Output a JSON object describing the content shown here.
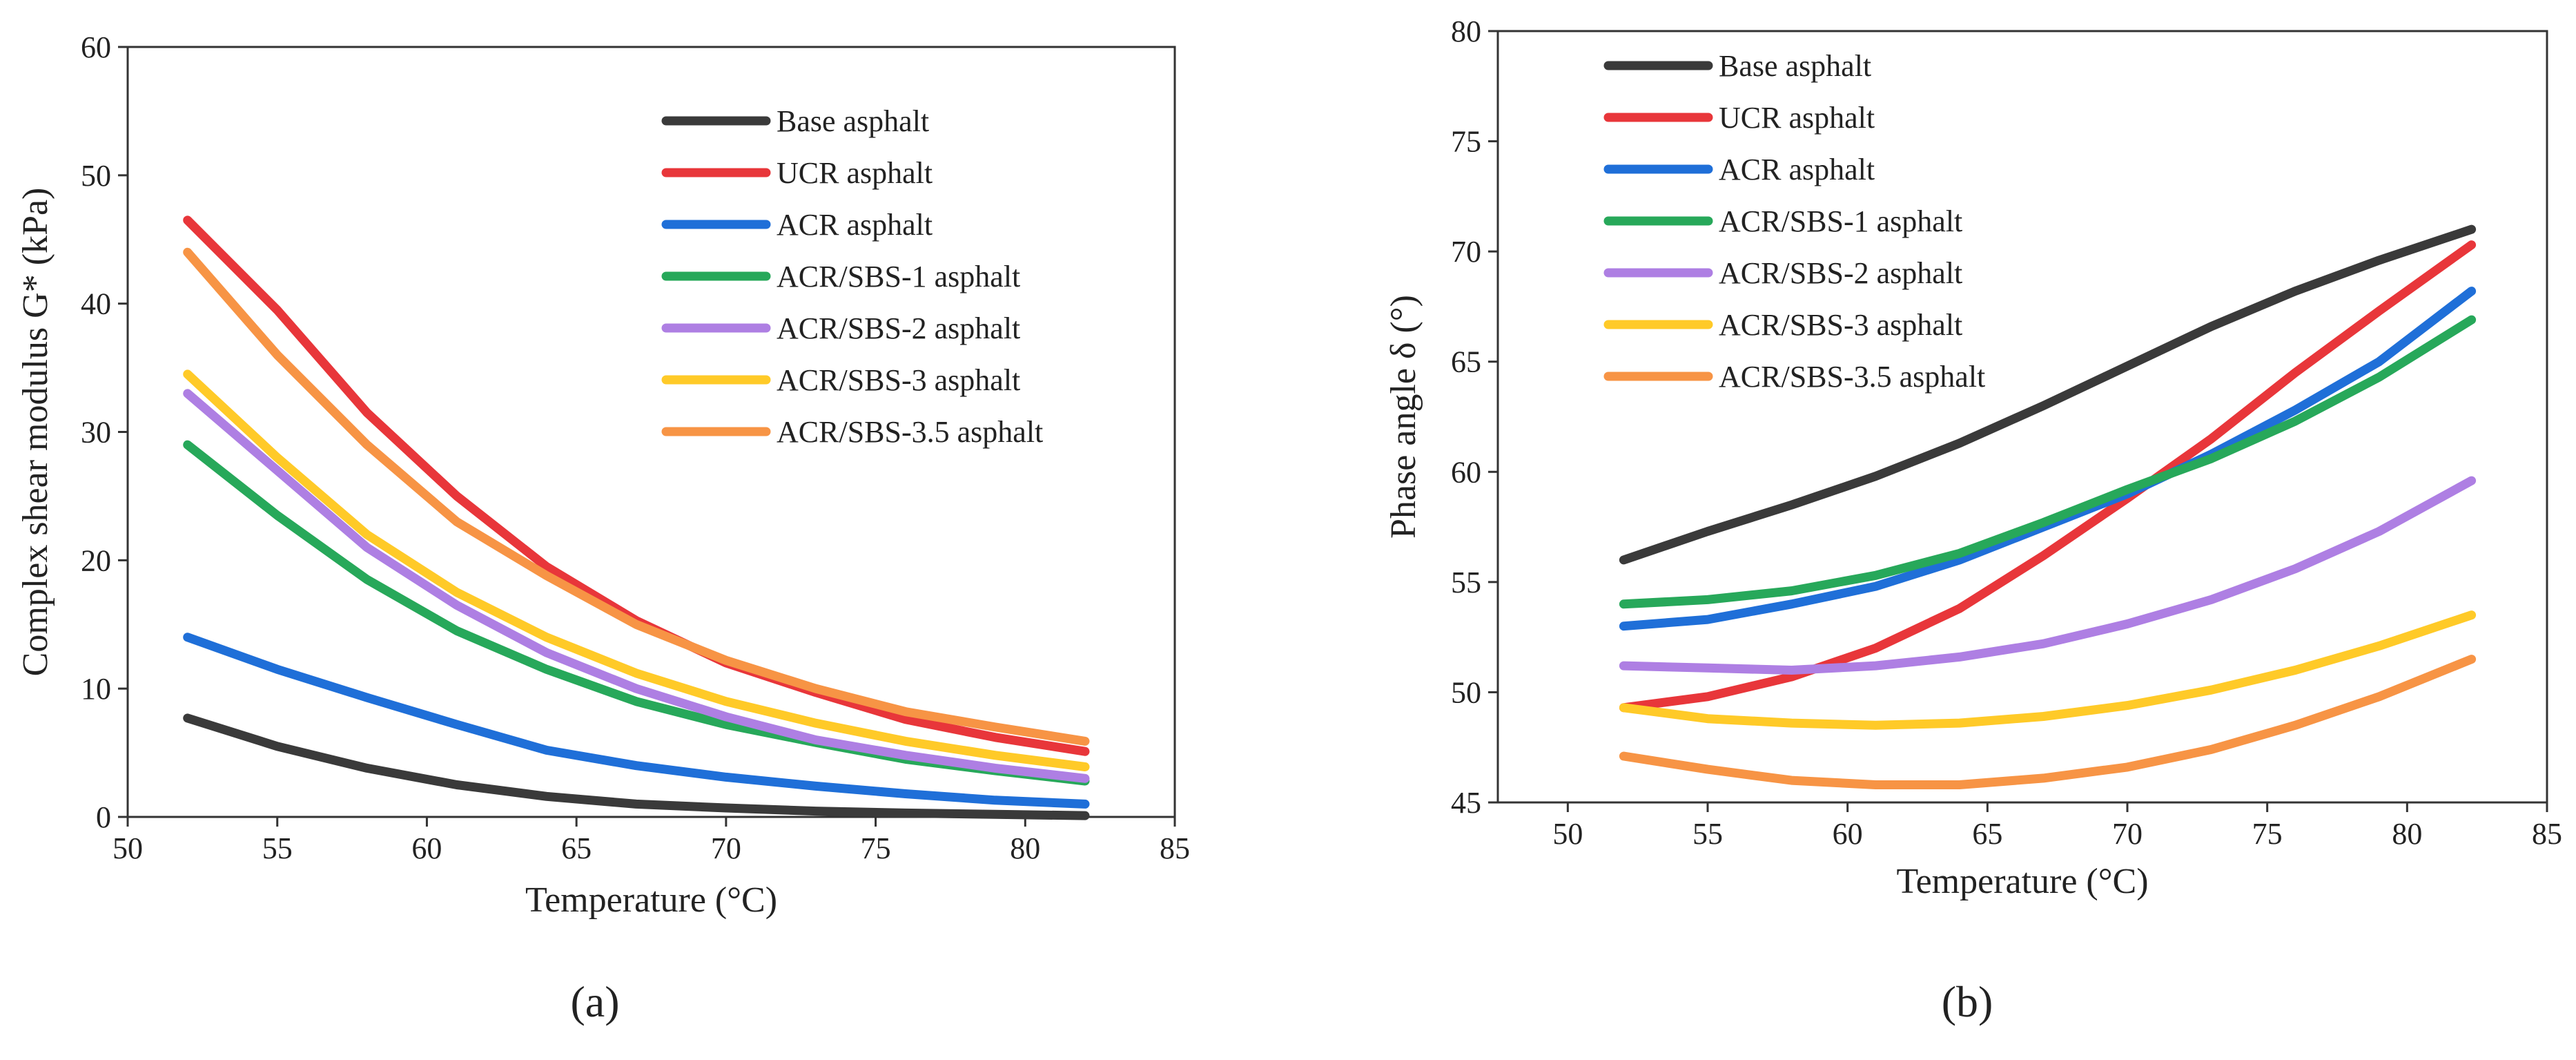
{
  "chart_data": [
    {
      "type": "line",
      "panel_label": "(a)",
      "xlabel": "Temperature (°C)",
      "ylabel": "Complex shear modulus G* (kPa)",
      "xlim": [
        50,
        85
      ],
      "ylim": [
        0,
        60
      ],
      "xticks": [
        50,
        55,
        60,
        65,
        70,
        75,
        80,
        85
      ],
      "yticks": [
        0,
        10,
        20,
        30,
        40,
        50,
        60
      ],
      "legend_position": "top-right",
      "x": [
        52,
        55,
        58,
        61,
        64,
        67,
        70,
        73,
        76,
        79,
        82
      ],
      "series": [
        {
          "name": "Base asphalt",
          "color": "#3a3a3a",
          "values": [
            7.7,
            5.5,
            3.8,
            2.5,
            1.6,
            1.0,
            0.7,
            0.45,
            0.3,
            0.2,
            0.1
          ]
        },
        {
          "name": "UCR asphalt",
          "color": "#e8363a",
          "values": [
            46.5,
            39.5,
            31.5,
            25,
            19.5,
            15.3,
            12.0,
            9.7,
            7.6,
            6.2,
            5.1
          ]
        },
        {
          "name": "ACR asphalt",
          "color": "#1f6fd8",
          "values": [
            14,
            11.5,
            9.3,
            7.2,
            5.2,
            4.0,
            3.1,
            2.4,
            1.8,
            1.3,
            1.0
          ]
        },
        {
          "name": "ACR/SBS-1 asphalt",
          "color": "#27a85a",
          "values": [
            29,
            23.5,
            18.5,
            14.5,
            11.5,
            9.0,
            7.2,
            5.8,
            4.5,
            3.6,
            2.8
          ]
        },
        {
          "name": "ACR/SBS-2 asphalt",
          "color": "#ae7fe3",
          "values": [
            33,
            27,
            21,
            16.5,
            12.8,
            10.0,
            7.8,
            6.0,
            4.8,
            3.8,
            3.0
          ]
        },
        {
          "name": "ACR/SBS-3 asphalt",
          "color": "#ffca28",
          "values": [
            34.5,
            28,
            22,
            17.5,
            14.0,
            11.2,
            9.0,
            7.3,
            5.9,
            4.8,
            3.9
          ]
        },
        {
          "name": "ACR/SBS-3.5 asphalt",
          "color": "#f79445",
          "values": [
            44,
            36,
            29,
            23,
            18.8,
            15.0,
            12.2,
            10.0,
            8.2,
            7.0,
            5.9
          ]
        }
      ]
    },
    {
      "type": "line",
      "panel_label": "(b)",
      "xlabel": "Temperature (°C)",
      "ylabel": "Phase angle δ (°)",
      "xlim": [
        47.5,
        85
      ],
      "ylim": [
        45,
        80
      ],
      "xticks": [
        50,
        55,
        60,
        65,
        70,
        75,
        80,
        85
      ],
      "yticks": [
        45,
        50,
        55,
        60,
        65,
        70,
        75,
        80
      ],
      "legend_position": "top-left",
      "x": [
        52,
        55,
        58,
        61,
        64,
        67,
        70,
        73,
        76,
        79,
        82.3
      ],
      "series": [
        {
          "name": "Base asphalt",
          "color": "#3a3a3a",
          "values": [
            56.0,
            57.3,
            58.5,
            59.8,
            61.3,
            63.0,
            64.8,
            66.6,
            68.2,
            69.6,
            71.0
          ]
        },
        {
          "name": "UCR asphalt",
          "color": "#e8363a",
          "values": [
            49.3,
            49.8,
            50.7,
            52.0,
            53.8,
            56.2,
            58.8,
            61.5,
            64.5,
            67.3,
            70.3
          ]
        },
        {
          "name": "ACR asphalt",
          "color": "#1f6fd8",
          "values": [
            53.0,
            53.3,
            54.0,
            54.8,
            56.0,
            57.5,
            59.0,
            60.8,
            62.8,
            65.0,
            68.2
          ]
        },
        {
          "name": "ACR/SBS-1 asphalt",
          "color": "#27a85a",
          "values": [
            54.0,
            54.2,
            54.6,
            55.3,
            56.3,
            57.7,
            59.2,
            60.6,
            62.3,
            64.3,
            66.9
          ]
        },
        {
          "name": "ACR/SBS-2 asphalt",
          "color": "#ae7fe3",
          "values": [
            51.2,
            51.1,
            51.0,
            51.2,
            51.6,
            52.2,
            53.1,
            54.2,
            55.6,
            57.3,
            59.6
          ]
        },
        {
          "name": "ACR/SBS-3 asphalt",
          "color": "#ffca28",
          "values": [
            49.3,
            48.8,
            48.6,
            48.5,
            48.6,
            48.9,
            49.4,
            50.1,
            51.0,
            52.1,
            53.5
          ]
        },
        {
          "name": "ACR/SBS-3.5 asphalt",
          "color": "#f79445",
          "values": [
            47.1,
            46.5,
            46.0,
            45.8,
            45.8,
            46.1,
            46.6,
            47.4,
            48.5,
            49.8,
            51.5
          ]
        }
      ]
    }
  ]
}
